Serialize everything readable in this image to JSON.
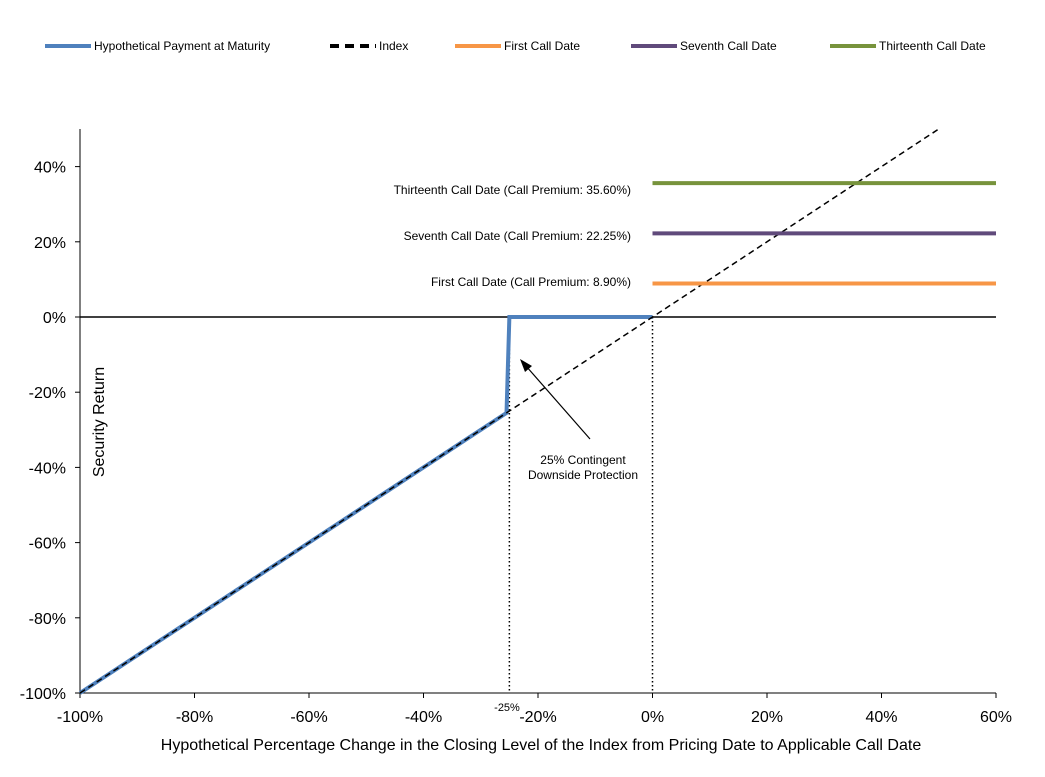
{
  "chart_data": {
    "type": "line",
    "title": "",
    "xlabel": "Hypothetical Percentage Change in the Closing Level of the Index from Pricing Date to Applicable Call Date",
    "ylabel": "Security Return",
    "xlim": [
      -100,
      60
    ],
    "ylim": [
      -100,
      50
    ],
    "x_ticks": [
      -100,
      -80,
      -60,
      -40,
      -20,
      0,
      20,
      40,
      60
    ],
    "y_ticks": [
      -100,
      -80,
      -60,
      -40,
      -20,
      0,
      20,
      40
    ],
    "x_tick_labels": [
      "-100%",
      "-80%",
      "-60%",
      "-40%",
      "-20%",
      "0%",
      "20%",
      "40%",
      "60%"
    ],
    "y_tick_labels": [
      "-100%",
      "-80%",
      "-60%",
      "-40%",
      "-20%",
      "0%",
      "20%",
      "40%"
    ],
    "grid": false,
    "legend_position": "top",
    "series": [
      {
        "name": "Hypothetical Payment at Maturity",
        "color": "#4f81bd",
        "style": "solid",
        "x": [
          -100,
          -25.5,
          -25,
          0
        ],
        "y": [
          -100,
          -25.5,
          0,
          0
        ]
      },
      {
        "name": "Index",
        "color": "#000000",
        "style": "dashed",
        "x": [
          -100,
          50
        ],
        "y": [
          -100,
          50
        ]
      },
      {
        "name": "First Call Date",
        "color": "#f79646",
        "style": "solid",
        "x": [
          0,
          60
        ],
        "y": [
          8.9,
          8.9
        ]
      },
      {
        "name": "Seventh Call Date",
        "color": "#604a7b",
        "style": "solid",
        "x": [
          0,
          60
        ],
        "y": [
          22.25,
          22.25
        ]
      },
      {
        "name": "Thirteenth Call Date",
        "color": "#77933c",
        "style": "solid",
        "x": [
          0,
          60
        ],
        "y": [
          35.6,
          35.6
        ]
      }
    ],
    "annotations": {
      "first_call": "First Call Date (Call Premium: 8.90%)",
      "seventh_call": "Seventh  Call Date (Call Premium: 22.25%)",
      "thirteenth_call": "Thirteenth  Call Date (Call Premium: 35.60%)",
      "protection_line1": "25% Contingent",
      "protection_line2": "Downside Protection",
      "barrier_label": "-25%"
    },
    "reference_lines": {
      "zero_line_y": 0,
      "vertical_dotted_x": [
        -25,
        0
      ]
    }
  }
}
